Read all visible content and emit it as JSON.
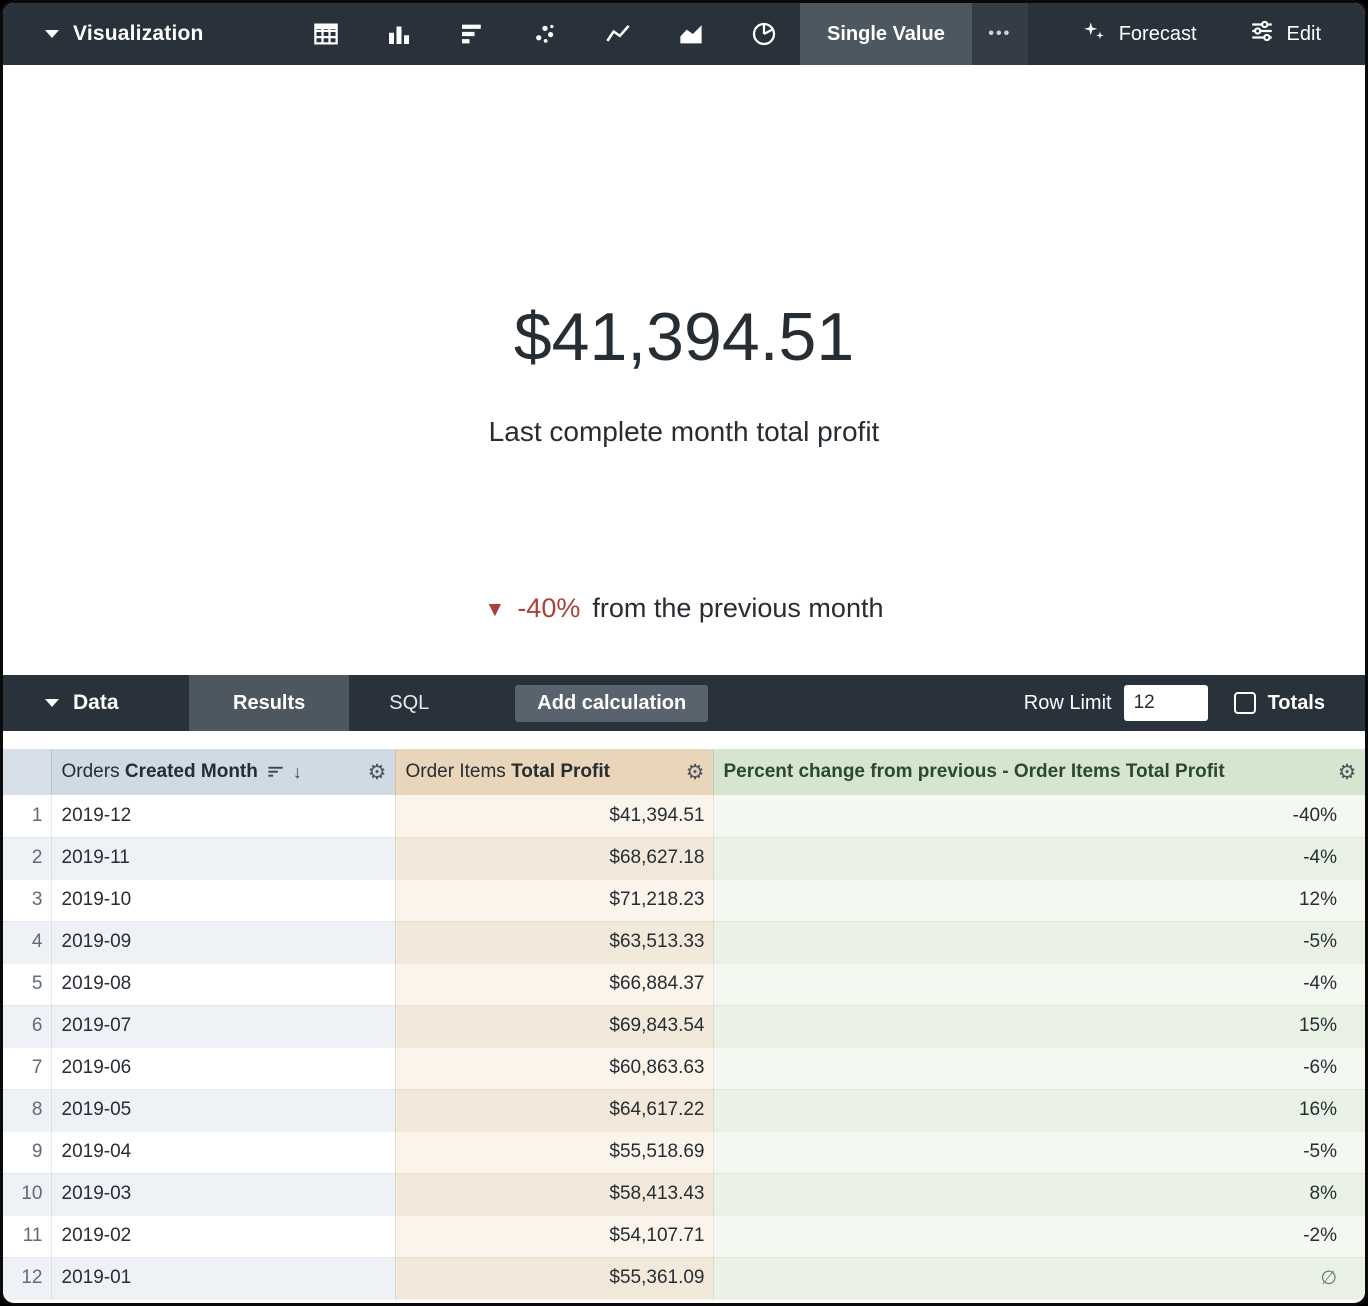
{
  "colors": {
    "toolbar_bg": "#29313a",
    "selected_tab_bg": "#4c5760",
    "negative_red": "#a8423a",
    "dimension_header_bg": "#cfdae3",
    "measure_header_bg": "#e9d5ba",
    "calc_header_bg": "#d5e5cf"
  },
  "viz_toolbar": {
    "title": "Visualization",
    "chart_types": [
      "table",
      "column",
      "bar",
      "scatter",
      "line",
      "area",
      "pie"
    ],
    "selected_type": "Single Value",
    "more": "•••",
    "forecast": "Forecast",
    "edit": "Edit"
  },
  "viz": {
    "value": "$41,394.51",
    "subtitle": "Last complete month total profit",
    "comparison_arrow": "▼",
    "comparison_percent": "-40%",
    "comparison_text": "from the previous month"
  },
  "data_toolbar": {
    "title": "Data",
    "results_tab": "Results",
    "sql_tab": "SQL",
    "add_calculation": "Add calculation",
    "row_limit_label": "Row Limit",
    "row_limit_value": "12",
    "totals_label": "Totals"
  },
  "table": {
    "headers": {
      "month_view": "Orders",
      "month_field": "Created Month",
      "profit_view": "Order Items",
      "profit_field": "Total Profit",
      "calc": "Percent change from previous - Order Items Total Profit"
    },
    "rows": [
      {
        "n": "1",
        "month": "2019-12",
        "profit": "$41,394.51",
        "pct": "-40%"
      },
      {
        "n": "2",
        "month": "2019-11",
        "profit": "$68,627.18",
        "pct": "-4%"
      },
      {
        "n": "3",
        "month": "2019-10",
        "profit": "$71,218.23",
        "pct": "12%"
      },
      {
        "n": "4",
        "month": "2019-09",
        "profit": "$63,513.33",
        "pct": "-5%"
      },
      {
        "n": "5",
        "month": "2019-08",
        "profit": "$66,884.37",
        "pct": "-4%"
      },
      {
        "n": "6",
        "month": "2019-07",
        "profit": "$69,843.54",
        "pct": "15%"
      },
      {
        "n": "7",
        "month": "2019-06",
        "profit": "$60,863.63",
        "pct": "-6%"
      },
      {
        "n": "8",
        "month": "2019-05",
        "profit": "$64,617.22",
        "pct": "16%"
      },
      {
        "n": "9",
        "month": "2019-04",
        "profit": "$55,518.69",
        "pct": "-5%"
      },
      {
        "n": "10",
        "month": "2019-03",
        "profit": "$58,413.43",
        "pct": "8%"
      },
      {
        "n": "11",
        "month": "2019-02",
        "profit": "$54,107.71",
        "pct": "-2%"
      },
      {
        "n": "12",
        "month": "2019-01",
        "profit": "$55,361.09",
        "pct": "∅"
      }
    ]
  }
}
